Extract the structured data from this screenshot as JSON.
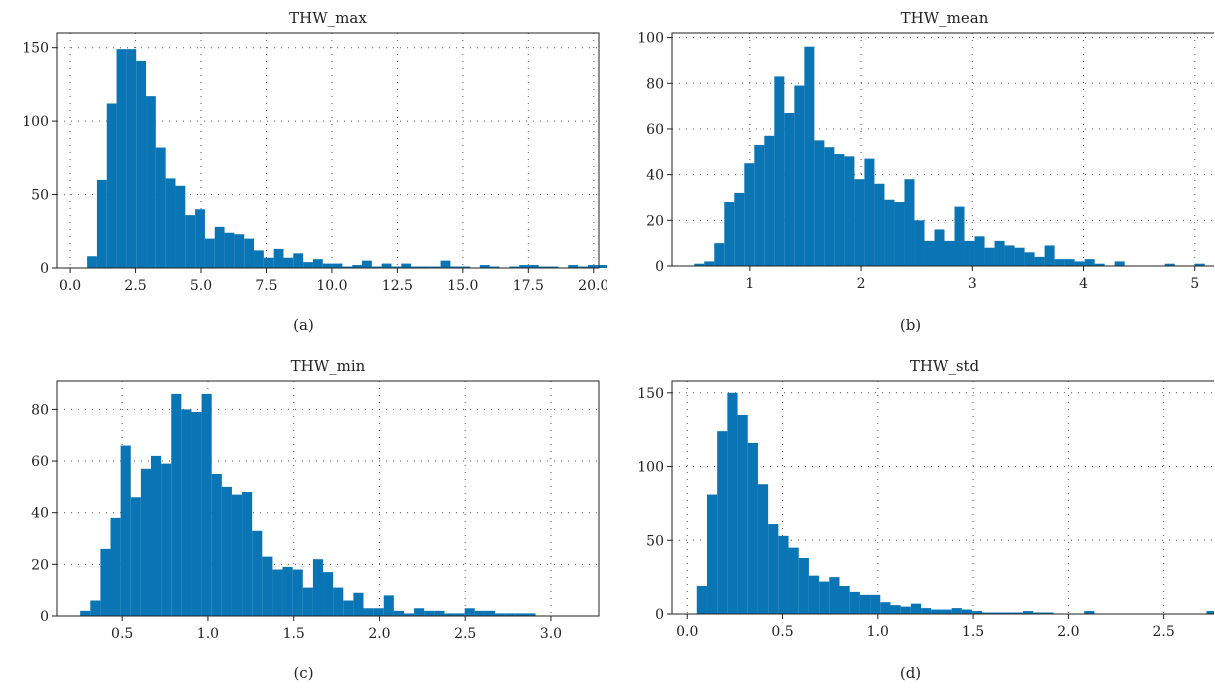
{
  "colors": {
    "bar": "#0a75b5",
    "axis": "#222222"
  },
  "panels": [
    {
      "caption": "(a)"
    },
    {
      "caption": "(b)"
    },
    {
      "caption": "(c)"
    },
    {
      "caption": "(d)"
    }
  ],
  "chart_data": [
    {
      "type": "bar",
      "title": "THW_max",
      "grid": true,
      "xlim": [
        -0.5,
        20.2
      ],
      "ylim": [
        0,
        160
      ],
      "xticks": [
        0,
        2.5,
        5,
        7.5,
        10,
        12.5,
        15,
        17.5,
        20
      ],
      "xticklabels": [
        "0.0",
        "2.5",
        "5.0",
        "7.5",
        "10.0",
        "12.5",
        "15.0",
        "17.5",
        "20.0"
      ],
      "yticks": [
        0,
        50,
        100,
        150
      ],
      "yticklabels": [
        "0",
        "50",
        "100",
        "150"
      ],
      "bin_start": 0.65,
      "bin_width": 0.375,
      "values": [
        8,
        60,
        112,
        149,
        149,
        141,
        117,
        82,
        61,
        56,
        36,
        40,
        20,
        28,
        24,
        23,
        20,
        12,
        7,
        13,
        7,
        10,
        4,
        6,
        3,
        3,
        1,
        2,
        5,
        1,
        3,
        1,
        3,
        1,
        1,
        1,
        5,
        1,
        1,
        0,
        2,
        1,
        0,
        1,
        2,
        2,
        1,
        1,
        0,
        2,
        1,
        2,
        2,
        1,
        0,
        1,
        2,
        2,
        1,
        0,
        1,
        1,
        1,
        2,
        1,
        0,
        1,
        2,
        1,
        1,
        1,
        0,
        1,
        1,
        1,
        1,
        1,
        0,
        1,
        1,
        1,
        1,
        0,
        0,
        0,
        1,
        1,
        0,
        0,
        0,
        0,
        0,
        0,
        0,
        0,
        0,
        0,
        0,
        0,
        0,
        0,
        0,
        0,
        0,
        0,
        0,
        0,
        0,
        0,
        0,
        0,
        0,
        1
      ]
    },
    {
      "type": "bar",
      "title": "THW_mean",
      "grid": true,
      "xlim": [
        0.3,
        5.2
      ],
      "ylim": [
        0,
        102
      ],
      "xticks": [
        1,
        2,
        3,
        4,
        5
      ],
      "xticklabels": [
        "1",
        "2",
        "3",
        "4",
        "5"
      ],
      "yticks": [
        0,
        20,
        40,
        60,
        80,
        100
      ],
      "yticklabels": [
        "0",
        "20",
        "40",
        "60",
        "80",
        "100"
      ],
      "bin_start": 0.5,
      "bin_width": 0.09,
      "values": [
        1,
        2,
        10,
        28,
        32,
        45,
        53,
        57,
        83,
        67,
        79,
        96,
        55,
        52,
        49,
        48,
        38,
        47,
        36,
        29,
        28,
        38,
        20,
        11,
        16,
        11,
        26,
        11,
        13,
        8,
        11,
        9,
        8,
        6,
        4,
        9,
        3,
        3,
        2,
        3,
        1,
        0,
        2,
        0,
        0,
        0,
        0,
        1,
        0,
        0,
        1,
        0,
        0,
        0,
        0,
        0,
        1
      ]
    },
    {
      "type": "bar",
      "title": "THW_min",
      "grid": true,
      "xlim": [
        0.12,
        3.28
      ],
      "ylim": [
        0,
        91
      ],
      "xticks": [
        0.5,
        1.0,
        1.5,
        2.0,
        2.5,
        3.0
      ],
      "xticklabels": [
        "0.5",
        "1.0",
        "1.5",
        "2.0",
        "2.5",
        "3.0"
      ],
      "yticks": [
        0,
        20,
        40,
        60,
        80
      ],
      "yticklabels": [
        "0",
        "20",
        "40",
        "60",
        "80"
      ],
      "bin_start": 0.255,
      "bin_width": 0.059,
      "values": [
        2,
        6,
        26,
        38,
        66,
        46,
        57,
        62,
        59,
        86,
        80,
        79,
        86,
        55,
        50,
        47,
        48,
        33,
        23,
        18,
        19,
        18,
        11,
        22,
        17,
        11,
        6,
        9,
        3,
        3,
        8,
        2,
        1,
        3,
        2,
        2,
        1,
        1,
        3,
        2,
        2,
        1,
        1,
        1,
        1,
        0,
        0,
        0,
        0,
        0,
        0,
        0,
        0,
        0,
        0,
        0,
        1
      ]
    },
    {
      "type": "bar",
      "title": "THW_std",
      "grid": true,
      "xlim": [
        -0.08,
        2.78
      ],
      "ylim": [
        0,
        158
      ],
      "xticks": [
        0,
        0.5,
        1.0,
        1.5,
        2.0,
        2.5
      ],
      "xticklabels": [
        "0.0",
        "0.5",
        "1.0",
        "1.5",
        "2.0",
        "2.5"
      ],
      "yticks": [
        0,
        50,
        100,
        150
      ],
      "yticklabels": [
        "0",
        "50",
        "100",
        "150"
      ],
      "bin_start": 0.05,
      "bin_width": 0.0535,
      "values": [
        19,
        81,
        124,
        150,
        135,
        116,
        88,
        61,
        53,
        45,
        38,
        26,
        22,
        25,
        19,
        15,
        13,
        13,
        8,
        6,
        5,
        7,
        4,
        3,
        3,
        4,
        3,
        2,
        1,
        1,
        1,
        1,
        2,
        1,
        1,
        0,
        0,
        0,
        2,
        0,
        0,
        0,
        0,
        0,
        0,
        0,
        0,
        0,
        0,
        0,
        2
      ]
    }
  ]
}
